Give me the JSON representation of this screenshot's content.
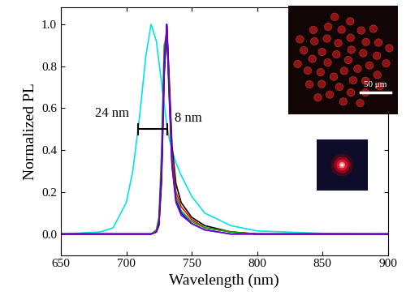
{
  "chart_data": {
    "type": "line",
    "x_label": "Wavelength (nm)",
    "y_label": "Normalized PL",
    "annotations": [
      "24 nm",
      "8 nm"
    ],
    "inset_scale_label": "50 μm",
    "x": [
      650,
      680,
      690,
      700,
      705,
      710,
      715,
      719,
      723,
      725,
      727,
      729,
      731,
      733,
      735,
      738,
      742,
      750,
      760,
      780,
      800,
      850,
      900
    ],
    "series": [
      {
        "color": "#00e5e5",
        "values": [
          0.0,
          0.01,
          0.03,
          0.15,
          0.3,
          0.55,
          0.85,
          1.0,
          0.92,
          0.82,
          0.72,
          0.62,
          0.52,
          0.45,
          0.4,
          0.34,
          0.28,
          0.18,
          0.1,
          0.04,
          0.015,
          0.003,
          0.0
        ]
      },
      {
        "color": "#000000",
        "values": [
          0.0,
          0.0,
          0.0,
          0.0,
          0.0,
          0.0,
          0.0,
          0.0,
          0.01,
          0.04,
          0.25,
          0.75,
          1.0,
          0.72,
          0.42,
          0.24,
          0.15,
          0.08,
          0.04,
          0.01,
          0.0,
          0.0,
          0.0
        ]
      },
      {
        "color": "#ff0000",
        "values": [
          0.0,
          0.0,
          0.0,
          0.0,
          0.0,
          0.0,
          0.0,
          0.0,
          0.01,
          0.05,
          0.3,
          0.8,
          0.98,
          0.68,
          0.38,
          0.2,
          0.13,
          0.07,
          0.03,
          0.01,
          0.0,
          0.0,
          0.0
        ]
      },
      {
        "color": "#00b000",
        "values": [
          0.0,
          0.0,
          0.0,
          0.0,
          0.0,
          0.0,
          0.0,
          0.0,
          0.02,
          0.08,
          0.4,
          0.9,
          0.95,
          0.62,
          0.34,
          0.18,
          0.11,
          0.06,
          0.03,
          0.01,
          0.0,
          0.0,
          0.0
        ]
      },
      {
        "color": "#0000ff",
        "values": [
          0.0,
          0.0,
          0.0,
          0.0,
          0.0,
          0.0,
          0.0,
          0.0,
          0.01,
          0.05,
          0.28,
          0.78,
          1.0,
          0.66,
          0.33,
          0.16,
          0.1,
          0.05,
          0.02,
          0.0,
          0.0,
          0.0,
          0.0
        ]
      },
      {
        "color": "#7a00c8",
        "values": [
          0.0,
          0.0,
          0.0,
          0.0,
          0.0,
          0.0,
          0.0,
          0.0,
          0.01,
          0.06,
          0.32,
          0.82,
          0.99,
          0.64,
          0.32,
          0.15,
          0.09,
          0.05,
          0.02,
          0.0,
          0.0,
          0.0,
          0.0
        ]
      }
    ],
    "xlim": [
      650,
      900
    ],
    "xticks": [
      650,
      700,
      750,
      800,
      850,
      900
    ],
    "ylim": [
      -0.1,
      1.08
    ],
    "yticks": [
      0.0,
      0.2,
      0.4,
      0.6,
      0.8,
      1.0
    ],
    "grid": false
  }
}
